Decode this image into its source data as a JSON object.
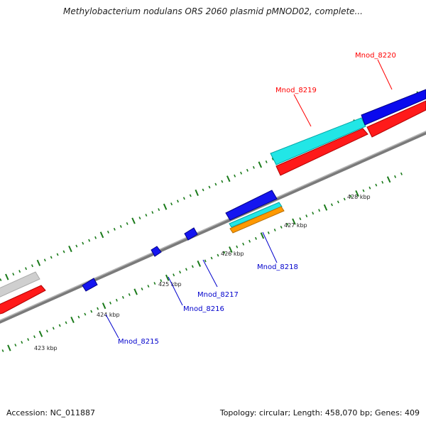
{
  "header": {
    "title": "Methylobacterium nodulans ORS 2060 plasmid pMNOD02, complete..."
  },
  "footer": {
    "accession": "Accession: NC_011887",
    "summary": "Topology: circular; Length: 458,070 bp; Genes: 409"
  },
  "scale_labels": [
    "423 kbp",
    "424 kbp",
    "425 kbp",
    "426 kbp",
    "427 kbp",
    "428 kbp"
  ],
  "genes_forward": [
    {
      "label": "Mnod_8219",
      "color": "#ff0000"
    },
    {
      "label": "Mnod_8220",
      "color": "#ff0000"
    }
  ],
  "genes_reverse": [
    {
      "label": "Mnod_8215",
      "color": "#0000cc"
    },
    {
      "label": "Mnod_8216",
      "color": "#0000cc"
    },
    {
      "label": "Mnod_8217",
      "color": "#0000cc"
    },
    {
      "label": "Mnod_8218",
      "color": "#0000cc"
    }
  ],
  "colors": {
    "backbone": "#888888",
    "tick": "#1a7a1a",
    "cds_red": "#ff0000",
    "cds_blue": "#0000ee",
    "rna_cyan": "#00e5e5",
    "rna_orange": "#ff9900",
    "gray_feature": "#c8c8c8"
  }
}
